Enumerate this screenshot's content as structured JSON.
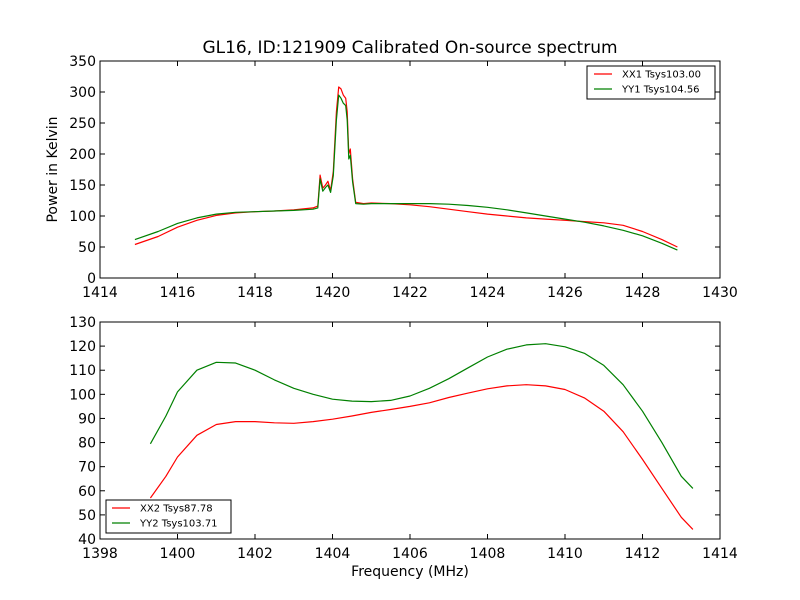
{
  "figure": {
    "title": "GL16, ID:121909 Calibrated On-source spectrum"
  },
  "chart_data": [
    {
      "type": "line",
      "xlabel": "",
      "ylabel": "Power in Kelvin",
      "xlim": [
        1414,
        1430
      ],
      "ylim": [
        0,
        350
      ],
      "xticks": [
        1414,
        1416,
        1418,
        1420,
        1422,
        1424,
        1426,
        1428,
        1430
      ],
      "yticks": [
        0,
        50,
        100,
        150,
        200,
        250,
        300,
        350
      ],
      "grid": false,
      "legend": "top-right",
      "series": [
        {
          "name": "XX1 Tsys103.00",
          "color": "#ff0000",
          "points": [
            [
              1414.9,
              54
            ],
            [
              1415.5,
              67
            ],
            [
              1416,
              82
            ],
            [
              1416.5,
              93
            ],
            [
              1417,
              101
            ],
            [
              1417.5,
              105
            ],
            [
              1418,
              107
            ],
            [
              1418.5,
              108
            ],
            [
              1419,
              110
            ],
            [
              1419.5,
              113
            ],
            [
              1419.62,
              116
            ],
            [
              1419.68,
              166
            ],
            [
              1419.75,
              145
            ],
            [
              1419.82,
              150
            ],
            [
              1419.88,
              156
            ],
            [
              1419.95,
              141
            ],
            [
              1420.02,
              172
            ],
            [
              1420.1,
              268
            ],
            [
              1420.16,
              308
            ],
            [
              1420.22,
              305
            ],
            [
              1420.28,
              295
            ],
            [
              1420.34,
              290
            ],
            [
              1420.38,
              268
            ],
            [
              1420.42,
              200
            ],
            [
              1420.46,
              208
            ],
            [
              1420.52,
              160
            ],
            [
              1420.6,
              122
            ],
            [
              1420.8,
              120
            ],
            [
              1421,
              121
            ],
            [
              1421.5,
              120
            ],
            [
              1422,
              118
            ],
            [
              1422.5,
              115
            ],
            [
              1423,
              111
            ],
            [
              1423.5,
              107
            ],
            [
              1424,
              103
            ],
            [
              1424.5,
              100
            ],
            [
              1425,
              97
            ],
            [
              1425.5,
              95
            ],
            [
              1426,
              93
            ],
            [
              1426.5,
              91
            ],
            [
              1427,
              89
            ],
            [
              1427.5,
              85
            ],
            [
              1428,
              75
            ],
            [
              1428.5,
              62
            ],
            [
              1428.9,
              50
            ]
          ]
        },
        {
          "name": "YY1 Tsys104.56",
          "color": "#008000",
          "points": [
            [
              1414.9,
              62
            ],
            [
              1415.5,
              75
            ],
            [
              1416,
              88
            ],
            [
              1416.5,
              97
            ],
            [
              1417,
              103
            ],
            [
              1417.5,
              106
            ],
            [
              1418,
              107
            ],
            [
              1418.5,
              108
            ],
            [
              1419,
              109
            ],
            [
              1419.5,
              111
            ],
            [
              1419.62,
              113
            ],
            [
              1419.68,
              160
            ],
            [
              1419.75,
              140
            ],
            [
              1419.82,
              146
            ],
            [
              1419.88,
              150
            ],
            [
              1419.95,
              138
            ],
            [
              1420.02,
              165
            ],
            [
              1420.1,
              255
            ],
            [
              1420.16,
              295
            ],
            [
              1420.22,
              290
            ],
            [
              1420.28,
              282
            ],
            [
              1420.34,
              278
            ],
            [
              1420.38,
              255
            ],
            [
              1420.42,
              192
            ],
            [
              1420.46,
              198
            ],
            [
              1420.52,
              155
            ],
            [
              1420.6,
              120
            ],
            [
              1420.8,
              119
            ],
            [
              1421,
              120
            ],
            [
              1421.5,
              120
            ],
            [
              1422,
              120
            ],
            [
              1422.5,
              120
            ],
            [
              1423,
              119
            ],
            [
              1423.5,
              117
            ],
            [
              1424,
              114
            ],
            [
              1424.5,
              110
            ],
            [
              1425,
              105
            ],
            [
              1425.5,
              100
            ],
            [
              1426,
              95
            ],
            [
              1426.5,
              90
            ],
            [
              1427,
              84
            ],
            [
              1427.5,
              77
            ],
            [
              1428,
              68
            ],
            [
              1428.5,
              56
            ],
            [
              1428.9,
              45
            ]
          ]
        }
      ]
    },
    {
      "type": "line",
      "xlabel": "Frequency (MHz)",
      "ylabel": "",
      "xlim": [
        1398,
        1414
      ],
      "ylim": [
        40,
        130
      ],
      "xticks": [
        1398,
        1400,
        1402,
        1404,
        1406,
        1408,
        1410,
        1412,
        1414
      ],
      "yticks": [
        40,
        50,
        60,
        70,
        80,
        90,
        100,
        110,
        120,
        130
      ],
      "grid": false,
      "legend": "bottom-left",
      "series": [
        {
          "name": "XX2 Tsys87.78",
          "color": "#ff0000",
          "points": [
            [
              1399.3,
              57
            ],
            [
              1399.7,
              66
            ],
            [
              1400,
              74
            ],
            [
              1400.5,
              83
            ],
            [
              1401,
              87.5
            ],
            [
              1401.5,
              88.7
            ],
            [
              1402,
              88.7
            ],
            [
              1402.5,
              88.2
            ],
            [
              1403,
              88
            ],
            [
              1403.5,
              88.7
            ],
            [
              1404,
              89.7
            ],
            [
              1404.5,
              91
            ],
            [
              1405,
              92.5
            ],
            [
              1405.5,
              93.7
            ],
            [
              1406,
              95
            ],
            [
              1406.5,
              96.5
            ],
            [
              1407,
              98.7
            ],
            [
              1407.5,
              100.5
            ],
            [
              1408,
              102.3
            ],
            [
              1408.5,
              103.5
            ],
            [
              1409,
              104
            ],
            [
              1409.5,
              103.5
            ],
            [
              1410,
              102
            ],
            [
              1410.5,
              98.5
            ],
            [
              1411,
              93
            ],
            [
              1411.5,
              84.5
            ],
            [
              1412,
              73
            ],
            [
              1412.5,
              61
            ],
            [
              1413,
              49
            ],
            [
              1413.3,
              44
            ]
          ]
        },
        {
          "name": "YY2 Tsys103.71",
          "color": "#008000",
          "points": [
            [
              1399.3,
              79.5
            ],
            [
              1399.7,
              91
            ],
            [
              1400,
              101
            ],
            [
              1400.5,
              110
            ],
            [
              1401,
              113.3
            ],
            [
              1401.5,
              113
            ],
            [
              1402,
              110
            ],
            [
              1402.5,
              106
            ],
            [
              1403,
              102.5
            ],
            [
              1403.5,
              100
            ],
            [
              1404,
              98
            ],
            [
              1404.5,
              97.2
            ],
            [
              1405,
              97
            ],
            [
              1405.5,
              97.5
            ],
            [
              1406,
              99.3
            ],
            [
              1406.5,
              102.5
            ],
            [
              1407,
              106.5
            ],
            [
              1407.5,
              111
            ],
            [
              1408,
              115.5
            ],
            [
              1408.5,
              118.7
            ],
            [
              1409,
              120.5
            ],
            [
              1409.5,
              121
            ],
            [
              1410,
              119.7
            ],
            [
              1410.5,
              117
            ],
            [
              1411,
              112
            ],
            [
              1411.5,
              104
            ],
            [
              1412,
              93
            ],
            [
              1412.5,
              80
            ],
            [
              1413,
              66
            ],
            [
              1413.3,
              61
            ]
          ]
        }
      ]
    }
  ]
}
